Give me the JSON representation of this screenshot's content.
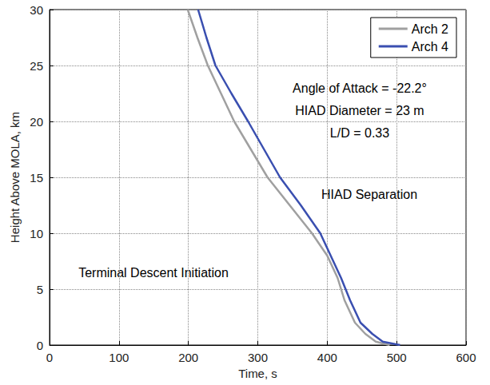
{
  "chart_data": {
    "type": "line",
    "x_label": "Time, s",
    "y_label": "Height Above MOLA, km",
    "xlim": [
      0,
      600
    ],
    "xticks": [
      0,
      100,
      200,
      300,
      400,
      500,
      600
    ],
    "ylim": [
      0,
      30
    ],
    "yticks": [
      0,
      5,
      10,
      15,
      20,
      25,
      30
    ],
    "grid": true,
    "legend": "upper right",
    "annotations": [
      "Angle of Attack = -22.2°",
      "HIAD Diameter = 23 m",
      "L/D = 0.33",
      "HIAD Separation",
      "Terminal Descent Initiation"
    ],
    "series": [
      {
        "name": "Arch 2",
        "color": "#a0a0a0",
        "x": [
          199,
          213,
          228,
          247,
          266,
          290,
          314,
          346,
          378,
          400,
          415,
          425,
          440,
          455,
          470,
          490
        ],
        "values": [
          30,
          27.5,
          25,
          22.5,
          20,
          17.5,
          15,
          12.5,
          10,
          8,
          6,
          4,
          2,
          1,
          0.3,
          0
        ]
      },
      {
        "name": "Arch 4",
        "color": "#3a4fb0",
        "x": [
          214,
          226,
          239,
          262,
          286,
          309,
          332,
          362,
          390,
          405,
          420,
          433,
          448,
          465,
          480,
          505
        ],
        "values": [
          30,
          27.5,
          25,
          22.5,
          20,
          17.5,
          15,
          12.5,
          10,
          8,
          6,
          4,
          2,
          1,
          0.3,
          0
        ]
      }
    ]
  }
}
